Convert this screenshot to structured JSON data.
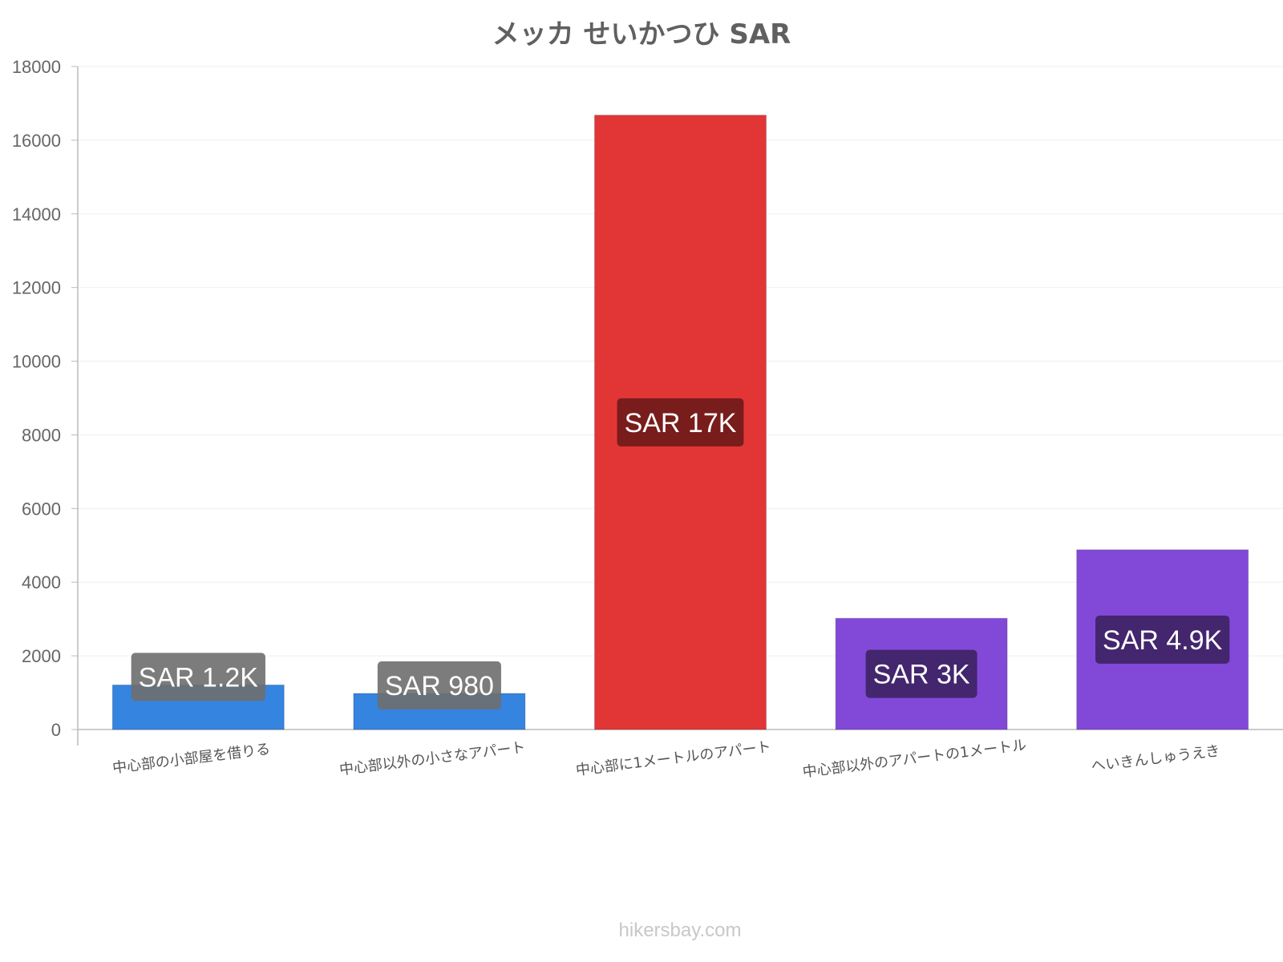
{
  "chart_data": {
    "type": "bar",
    "title": "メッカ せいかつひ SAR",
    "categories": [
      "中心部の小部屋を借りる",
      "中心部以外の小さなアパート",
      "中心部に1メートルのアパート",
      "中心部以外のアパートの1メートル",
      "へいきんしゅうえき"
    ],
    "values": [
      1210,
      980,
      16680,
      3020,
      4880
    ],
    "data_labels": [
      "SAR 1.2K",
      "SAR 980",
      "SAR 17K",
      "SAR 3K",
      "SAR 4.9K"
    ],
    "bar_colors": [
      "#3584e0",
      "#3584e0",
      "#e23636",
      "#8249d8",
      "#8249d8"
    ],
    "label_bg_colors": [
      "#6e6e6e",
      "#6e6e6e",
      "#6e1a1a",
      "#3c2263",
      "#3c2263"
    ],
    "ylim": [
      0,
      18000
    ],
    "yticks": [
      0,
      2000,
      4000,
      6000,
      8000,
      10000,
      12000,
      14000,
      16000,
      18000
    ],
    "xlabel": "",
    "ylabel": "",
    "grid": true,
    "legend": "none"
  },
  "watermark": "hikersbay.com"
}
